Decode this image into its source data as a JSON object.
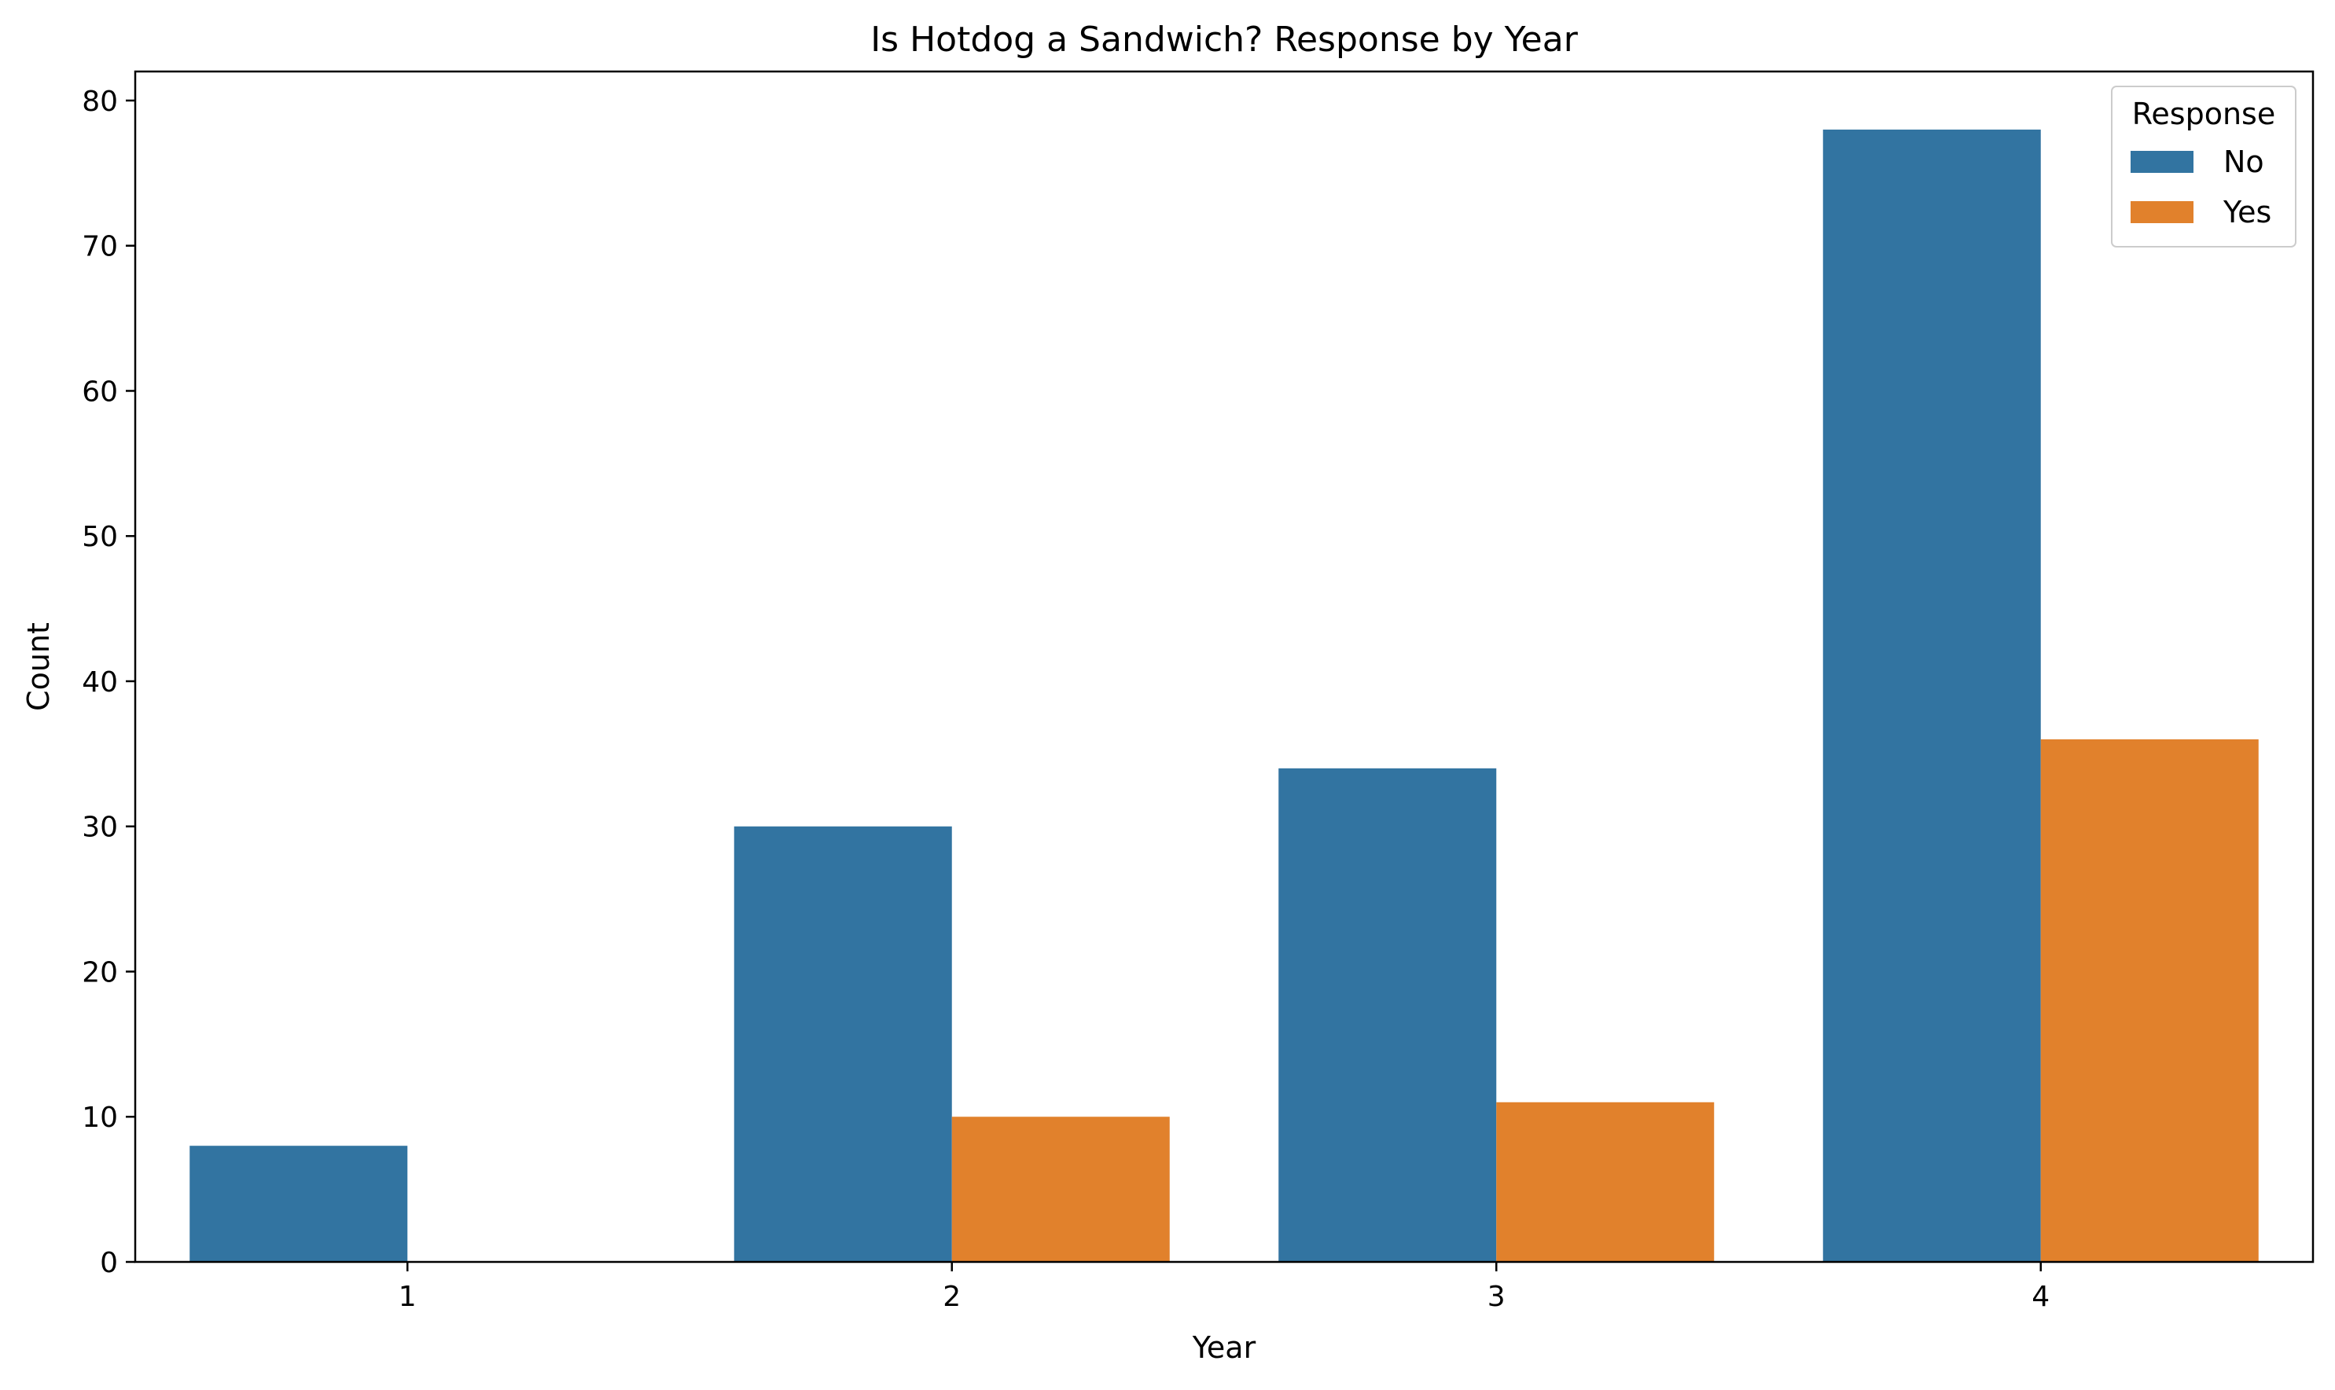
{
  "chart_data": {
    "type": "bar",
    "title": "Is Hotdog a Sandwich? Response by Year",
    "xlabel": "Year",
    "ylabel": "Count",
    "categories": [
      "1",
      "2",
      "3",
      "4"
    ],
    "series": [
      {
        "name": "No",
        "values": [
          8,
          30,
          34,
          78
        ],
        "color": "#3274a1"
      },
      {
        "name": "Yes",
        "values": [
          0,
          10,
          11,
          36
        ],
        "color": "#e1812c"
      }
    ],
    "ylim": [
      0,
      82
    ],
    "yticks": [
      0,
      10,
      20,
      30,
      40,
      50,
      60,
      70,
      80
    ],
    "grid": false,
    "legend": {
      "title": "Response",
      "placement": "top-right"
    }
  }
}
